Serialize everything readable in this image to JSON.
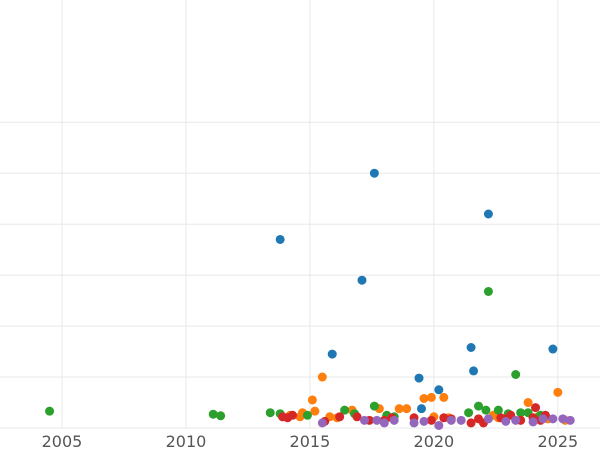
{
  "chart_data": {
    "type": "scatter",
    "title": "",
    "xlabel": "",
    "ylabel": "",
    "xlim": [
      2002.5,
      2026.7
    ],
    "ylim": [
      0,
      8.4
    ],
    "x_ticks": [
      2005,
      2010,
      2015,
      2020,
      2025
    ],
    "x_tick_labels": [
      "2005",
      "2010",
      "2015",
      "2020",
      "2025"
    ],
    "y_gridlines": [
      0,
      1,
      2,
      3,
      4,
      5,
      6
    ],
    "grid": true,
    "legend": "none",
    "series": [
      {
        "color": "#1f77b4",
        "points": [
          [
            2013.8,
            3.7
          ],
          [
            2015.9,
            1.45
          ],
          [
            2017.1,
            2.9
          ],
          [
            2017.6,
            5.0
          ],
          [
            2019.4,
            0.98
          ],
          [
            2019.5,
            0.38
          ],
          [
            2020.2,
            0.75
          ],
          [
            2021.5,
            1.58
          ],
          [
            2021.6,
            1.12
          ],
          [
            2022.2,
            4.2
          ],
          [
            2024.8,
            1.55
          ]
        ]
      },
      {
        "color": "#ff7f0e",
        "points": [
          [
            2013.9,
            0.22
          ],
          [
            2014.2,
            0.25
          ],
          [
            2014.6,
            0.22
          ],
          [
            2014.7,
            0.3
          ],
          [
            2015.1,
            0.55
          ],
          [
            2015.2,
            0.33
          ],
          [
            2015.5,
            1.0
          ],
          [
            2015.8,
            0.22
          ],
          [
            2016.1,
            0.2
          ],
          [
            2016.7,
            0.35
          ],
          [
            2017.8,
            0.38
          ],
          [
            2018.1,
            0.2
          ],
          [
            2018.6,
            0.38
          ],
          [
            2018.9,
            0.38
          ],
          [
            2019.6,
            0.58
          ],
          [
            2019.9,
            0.6
          ],
          [
            2020.0,
            0.22
          ],
          [
            2020.4,
            0.6
          ],
          [
            2020.6,
            0.2
          ],
          [
            2022.4,
            0.25
          ],
          [
            2022.6,
            0.2
          ],
          [
            2023.0,
            0.25
          ],
          [
            2023.8,
            0.5
          ],
          [
            2024.2,
            0.22
          ],
          [
            2024.6,
            0.18
          ],
          [
            2025.0,
            0.7
          ],
          [
            2025.3,
            0.15
          ]
        ]
      },
      {
        "color": "#2ca02c",
        "points": [
          [
            2004.5,
            0.33
          ],
          [
            2011.1,
            0.27
          ],
          [
            2011.4,
            0.24
          ],
          [
            2013.4,
            0.3
          ],
          [
            2013.8,
            0.28
          ],
          [
            2014.9,
            0.25
          ],
          [
            2016.4,
            0.35
          ],
          [
            2016.8,
            0.28
          ],
          [
            2017.6,
            0.43
          ],
          [
            2018.1,
            0.25
          ],
          [
            2018.4,
            0.22
          ],
          [
            2021.4,
            0.3
          ],
          [
            2021.8,
            0.43
          ],
          [
            2022.1,
            0.35
          ],
          [
            2022.2,
            2.68
          ],
          [
            2022.6,
            0.35
          ],
          [
            2023.0,
            0.28
          ],
          [
            2023.3,
            1.05
          ],
          [
            2023.5,
            0.3
          ],
          [
            2023.8,
            0.3
          ],
          [
            2024.3,
            0.25
          ]
        ]
      },
      {
        "color": "#d62728",
        "points": [
          [
            2013.9,
            0.22
          ],
          [
            2014.1,
            0.2
          ],
          [
            2014.3,
            0.25
          ],
          [
            2015.6,
            0.13
          ],
          [
            2016.2,
            0.22
          ],
          [
            2016.9,
            0.22
          ],
          [
            2017.4,
            0.15
          ],
          [
            2018.0,
            0.15
          ],
          [
            2018.3,
            0.2
          ],
          [
            2019.2,
            0.2
          ],
          [
            2019.9,
            0.15
          ],
          [
            2020.4,
            0.2
          ],
          [
            2020.7,
            0.18
          ],
          [
            2021.5,
            0.1
          ],
          [
            2021.8,
            0.18
          ],
          [
            2022.0,
            0.1
          ],
          [
            2022.7,
            0.2
          ],
          [
            2022.9,
            0.18
          ],
          [
            2023.1,
            0.25
          ],
          [
            2023.5,
            0.15
          ],
          [
            2024.0,
            0.2
          ],
          [
            2024.1,
            0.4
          ],
          [
            2024.3,
            0.15
          ],
          [
            2024.5,
            0.25
          ]
        ]
      },
      {
        "color": "#9467bd",
        "points": [
          [
            2015.5,
            0.1
          ],
          [
            2017.2,
            0.15
          ],
          [
            2017.7,
            0.15
          ],
          [
            2018.0,
            0.1
          ],
          [
            2018.4,
            0.15
          ],
          [
            2019.2,
            0.1
          ],
          [
            2019.6,
            0.13
          ],
          [
            2020.2,
            0.05
          ],
          [
            2020.7,
            0.15
          ],
          [
            2021.1,
            0.15
          ],
          [
            2022.2,
            0.18
          ],
          [
            2022.9,
            0.13
          ],
          [
            2023.3,
            0.15
          ],
          [
            2024.0,
            0.12
          ],
          [
            2024.4,
            0.18
          ],
          [
            2024.8,
            0.18
          ],
          [
            2025.2,
            0.18
          ],
          [
            2025.5,
            0.15
          ]
        ]
      }
    ]
  }
}
